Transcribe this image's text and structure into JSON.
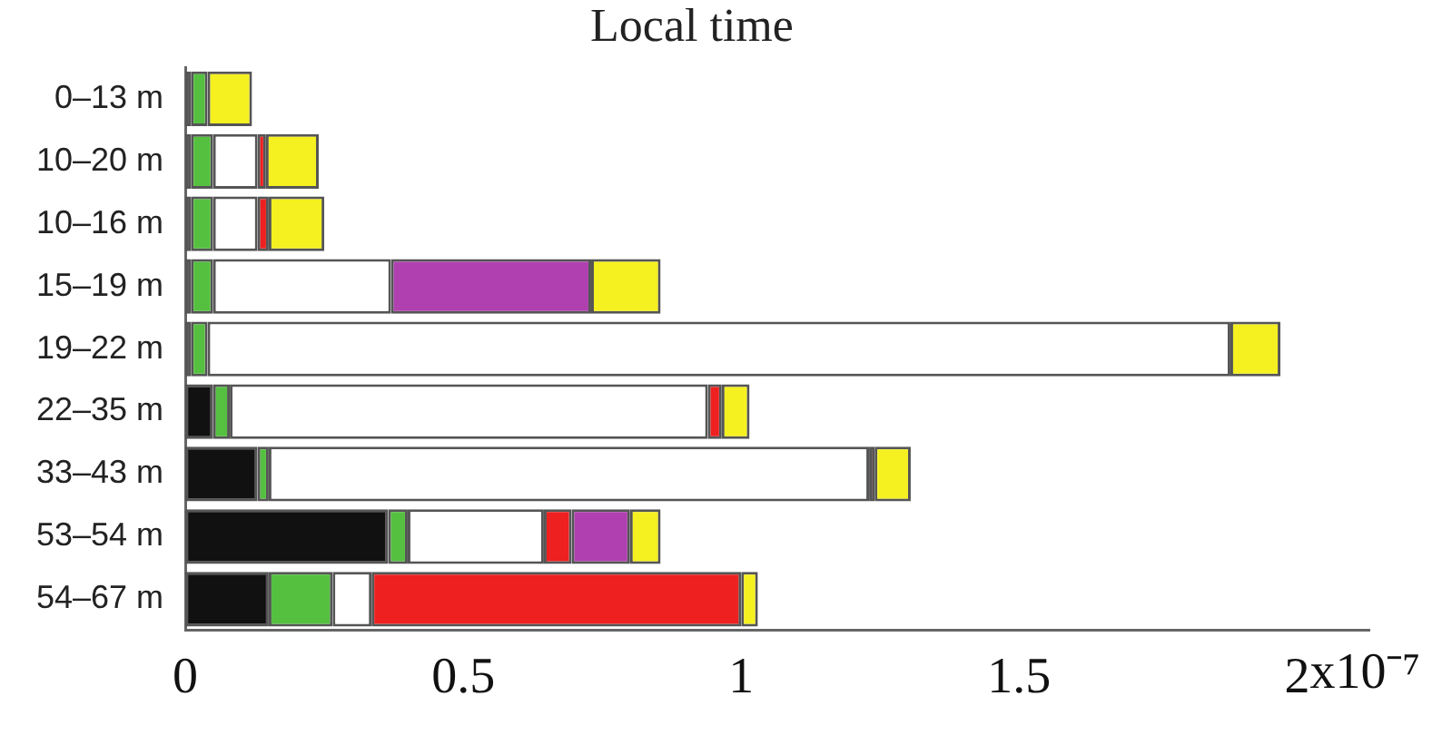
{
  "chart_data": {
    "type": "bar",
    "orientation": "horizontal",
    "stacked": true,
    "title": "Local time",
    "categories": [
      "0–13 m",
      "10–20 m",
      "10–16 m",
      "15–19 m",
      "19–22 m",
      "22–35 m",
      "33–43 m",
      "53–54 m",
      "54–67 m"
    ],
    "series": [
      {
        "color": "#111111",
        "values": [
          0.01,
          0.01,
          0.01,
          0.01,
          0.01,
          0.05,
          0.13,
          0.365,
          0.15
        ]
      },
      {
        "color": "#55c040",
        "values": [
          0.03,
          0.04,
          0.04,
          0.04,
          0.03,
          0.03,
          0.02,
          0.035,
          0.115
        ]
      },
      {
        "color": "#ffffff",
        "values": [
          0,
          0.08,
          0.08,
          0.32,
          1.84,
          0.86,
          1.08,
          0.245,
          0.07
        ]
      },
      {
        "color": "#ee2020",
        "values": [
          0,
          0.015,
          0.02,
          0,
          0,
          0.025,
          0.01,
          0.05,
          0.665
        ]
      },
      {
        "color": "#b040b0",
        "values": [
          0,
          0,
          0,
          0.36,
          0,
          0,
          0,
          0.105,
          0
        ]
      },
      {
        "color": "#f5f020",
        "values": [
          0.08,
          0.095,
          0.1,
          0.125,
          0.09,
          0.05,
          0.065,
          0.055,
          0.03
        ]
      }
    ],
    "xlim": [
      0,
      2.13
    ],
    "xticks": [
      0,
      0.5,
      1,
      1.5,
      2
    ],
    "xlabel": "x10⁻⁷",
    "grid": false,
    "legend": false
  }
}
